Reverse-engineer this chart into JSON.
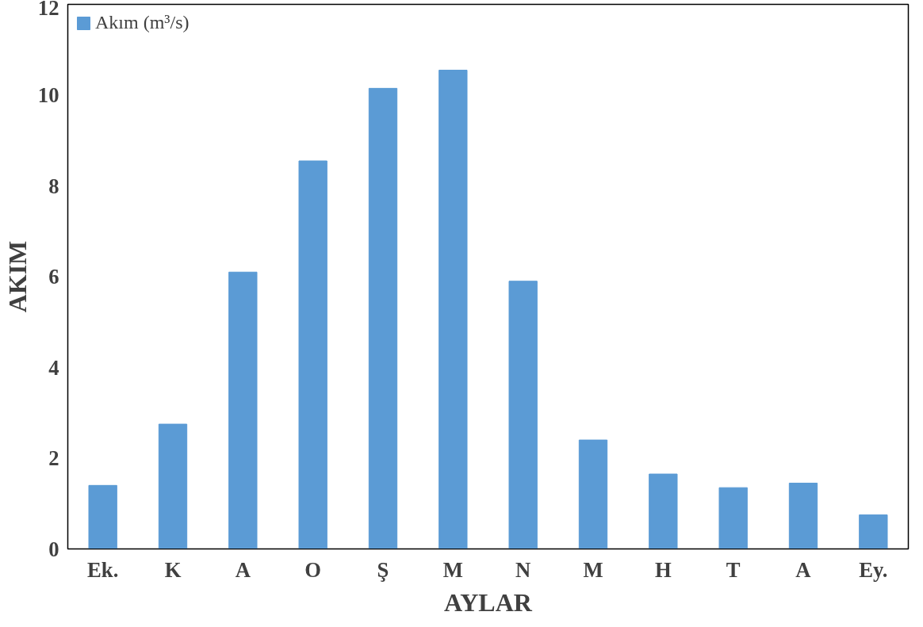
{
  "chart_data": {
    "type": "bar",
    "xlabel": "AYLAR",
    "ylabel": "AKIM",
    "categories": [
      "Ek.",
      "K",
      "A",
      "O",
      "Ş",
      "M",
      "N",
      "M",
      "H",
      "T",
      "A",
      "Ey."
    ],
    "series": [
      {
        "name": "Akım (m³/s)",
        "color": "#5b9bd5",
        "values": [
          1.4,
          2.75,
          6.1,
          8.55,
          10.15,
          10.55,
          5.9,
          2.4,
          1.65,
          1.35,
          1.45,
          0.75
        ]
      }
    ],
    "ylim": [
      0,
      12
    ],
    "yticks": [
      0,
      2,
      4,
      6,
      8,
      10,
      12
    ],
    "grid": false,
    "legend": "top left"
  }
}
